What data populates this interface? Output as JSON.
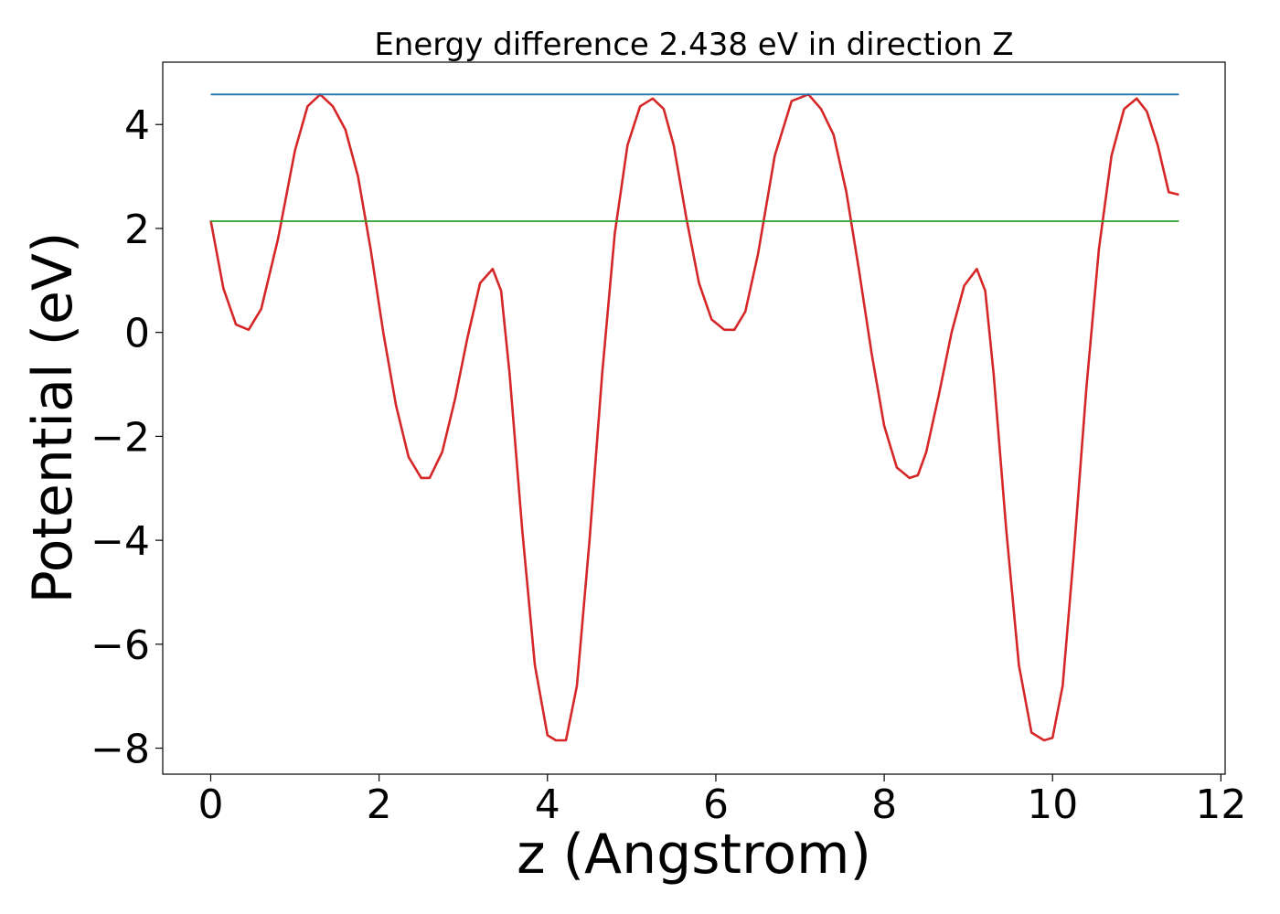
{
  "chart_data": {
    "type": "line",
    "title": "Energy difference 2.438 eV in direction Z",
    "xlabel": "z (Angstrom)",
    "ylabel": "Potential (eV)",
    "xlim": [
      -0.57,
      12.05
    ],
    "ylim": [
      -8.5,
      5.2
    ],
    "xticks": [
      0,
      2,
      4,
      6,
      8,
      10,
      12
    ],
    "xtick_labels": [
      "0",
      "2",
      "4",
      "6",
      "8",
      "10",
      "12"
    ],
    "yticks": [
      -8,
      -6,
      -4,
      -2,
      0,
      2,
      4
    ],
    "ytick_labels": [
      "−8",
      "−6",
      "−4",
      "−2",
      "0",
      "2",
      "4"
    ],
    "grid": false,
    "colors": {
      "potential": "#d62728",
      "max_level": "#1f77b4",
      "min_level": "#2ca02c"
    },
    "series": [
      {
        "kind": "curve",
        "x": [
          0,
          0.15,
          0.3,
          0.45,
          0.6,
          0.8,
          1.0,
          1.15,
          1.3,
          1.45,
          1.6,
          1.75,
          1.9,
          2.05,
          2.2,
          2.35,
          2.5,
          2.6,
          2.75,
          2.9,
          3.05,
          3.2,
          3.35,
          3.45,
          3.55,
          3.7,
          3.85,
          4.0,
          4.1,
          4.22,
          4.35,
          4.5,
          4.65,
          4.8,
          4.95,
          5.1,
          5.25,
          5.38,
          5.5,
          5.65,
          5.8,
          5.95,
          6.1,
          6.22,
          6.35,
          6.5,
          6.7,
          6.9,
          7.1,
          7.25,
          7.4,
          7.55,
          7.7,
          7.85,
          8.0,
          8.15,
          8.3,
          8.4,
          8.5,
          8.65,
          8.8,
          8.95,
          9.1,
          9.2,
          9.3,
          9.45,
          9.6,
          9.75,
          9.9,
          10.0,
          10.12,
          10.25,
          10.4,
          10.55,
          10.7,
          10.85,
          11.0,
          11.12,
          11.25,
          11.38,
          11.5
        ],
        "y": [
          2.15,
          0.85,
          0.15,
          0.05,
          0.45,
          1.8,
          3.5,
          4.35,
          4.58,
          4.35,
          3.9,
          3.0,
          1.6,
          0.0,
          -1.4,
          -2.4,
          -2.8,
          -2.8,
          -2.3,
          -1.3,
          -0.1,
          0.95,
          1.22,
          0.8,
          -0.8,
          -3.8,
          -6.4,
          -7.75,
          -7.85,
          -7.85,
          -6.8,
          -4.0,
          -0.8,
          1.9,
          3.6,
          4.35,
          4.5,
          4.3,
          3.6,
          2.2,
          0.95,
          0.25,
          0.05,
          0.05,
          0.4,
          1.5,
          3.4,
          4.45,
          4.58,
          4.3,
          3.8,
          2.7,
          1.2,
          -0.4,
          -1.8,
          -2.6,
          -2.8,
          -2.75,
          -2.3,
          -1.2,
          0.0,
          0.9,
          1.22,
          0.8,
          -0.8,
          -3.8,
          -6.4,
          -7.7,
          -7.85,
          -7.8,
          -6.8,
          -4.3,
          -1.1,
          1.6,
          3.4,
          4.3,
          4.5,
          4.25,
          3.6,
          2.7,
          2.65
        ]
      },
      {
        "kind": "level",
        "x": [
          0,
          11.5
        ],
        "y": [
          4.58,
          4.58
        ]
      },
      {
        "kind": "level",
        "x": [
          0,
          11.5
        ],
        "y": [
          2.14,
          2.14
        ]
      }
    ]
  }
}
